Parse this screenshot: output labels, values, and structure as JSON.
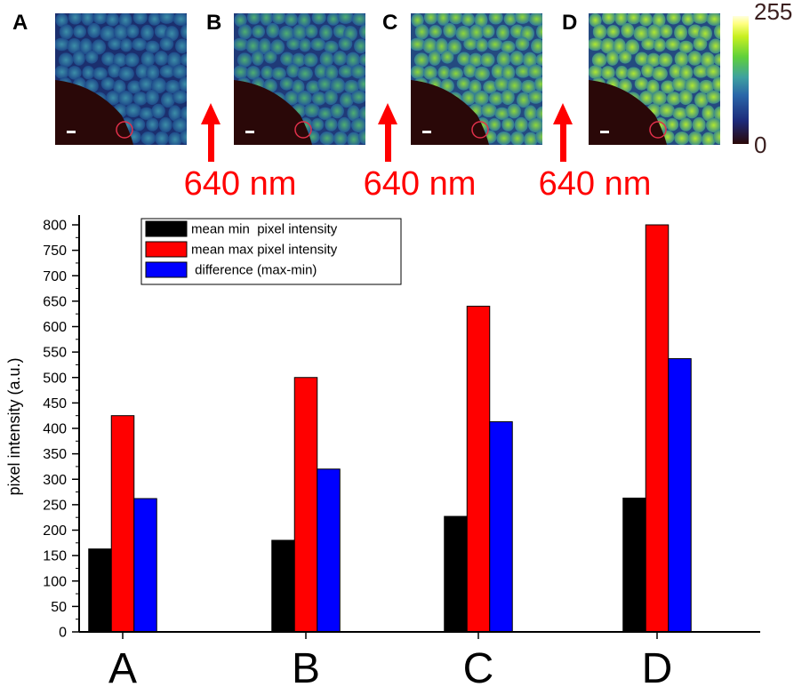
{
  "panels": [
    {
      "letter": "A"
    },
    {
      "letter": "B"
    },
    {
      "letter": "C"
    },
    {
      "letter": "D"
    }
  ],
  "laser_labels": [
    "640 nm",
    "640 nm",
    "640 nm"
  ],
  "colorbar": {
    "max_label": "255",
    "min_label": "0",
    "colors": [
      "#2a0808",
      "#1d2a7a",
      "#2a66a8",
      "#3ea0a0",
      "#5fd03a",
      "#c8f020",
      "#ffff80",
      "#ffffe0"
    ]
  },
  "chart_data": {
    "type": "bar",
    "categories": [
      "A",
      "B",
      "C",
      "D"
    ],
    "series": [
      {
        "name": "mean min  pixel intensity",
        "color": "#000000",
        "values": [
          163,
          180,
          227,
          263
        ]
      },
      {
        "name": "mean max pixel intensity",
        "color": "#ff0000",
        "values": [
          425,
          500,
          640,
          800
        ]
      },
      {
        "name": " difference (max-min)",
        "color": "#0000ff",
        "values": [
          262,
          320,
          413,
          537
        ]
      }
    ],
    "ylabel": "pixel intensity  (a.u.)",
    "xlabel": "",
    "ylim": [
      0,
      820
    ],
    "yticks": [
      0,
      50,
      100,
      150,
      200,
      250,
      300,
      350,
      400,
      450,
      500,
      550,
      600,
      650,
      700,
      750,
      800
    ],
    "legend_position": "top-left"
  }
}
